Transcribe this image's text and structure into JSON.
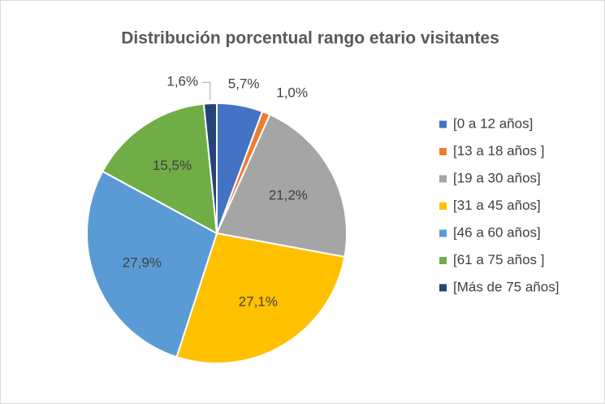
{
  "chart_data": {
    "type": "pie",
    "title": "Distribución porcentual rango etario visitantes",
    "categories": [
      "[0 a 12 años]",
      "[13 a 18 años ]",
      "[19 a 30 años]",
      "[31 a 45 años]",
      "[46 a 60 años]",
      "[61 a 75 años ]",
      "[Más de 75 años]"
    ],
    "values": [
      5.7,
      1.0,
      21.2,
      27.1,
      27.9,
      15.5,
      1.6
    ],
    "value_labels": [
      "5,7%",
      "1,0%",
      "21,2%",
      "27,1%",
      "27,9%",
      "15,5%",
      "1,6%"
    ],
    "colors": [
      "#4472c4",
      "#ed7d31",
      "#a5a5a5",
      "#ffc000",
      "#5b9bd5",
      "#70ad47",
      "#264478"
    ],
    "legend": "right"
  }
}
